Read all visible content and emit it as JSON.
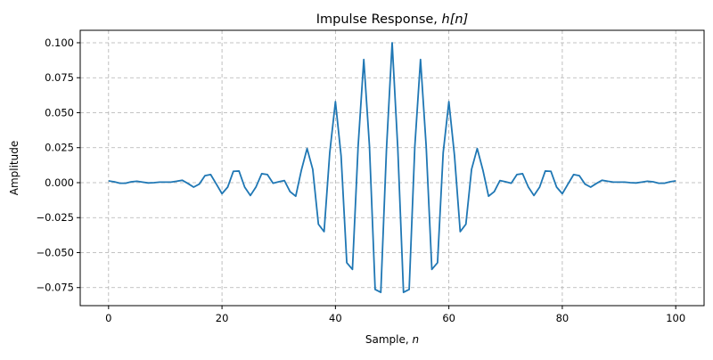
{
  "chart_data": {
    "type": "line",
    "title": "Impulse Response, h[n]",
    "title_prefix": "Impulse Response, ",
    "title_math": "h[n]",
    "xlabel": "Sample, n",
    "xlabel_prefix": "Sample, ",
    "xlabel_math": "n",
    "ylabel": "Amplitude",
    "xlim": [
      -5,
      105
    ],
    "ylim": [
      -0.0879,
      0.1089
    ],
    "xticks": [
      0,
      20,
      40,
      60,
      80,
      100
    ],
    "xtick_labels": [
      "0",
      "20",
      "40",
      "60",
      "80",
      "100"
    ],
    "yticks": [
      -0.075,
      -0.05,
      -0.025,
      0.0,
      0.025,
      0.05,
      0.075,
      0.1
    ],
    "ytick_labels": [
      "−0.075",
      "−0.050",
      "−0.025",
      "0.000",
      "0.025",
      "0.050",
      "0.075",
      "0.100"
    ],
    "grid": true,
    "legend": null,
    "series": [
      {
        "name": "h[n]",
        "color": "#1f77b4",
        "x": [
          0,
          1,
          2,
          3,
          4,
          5,
          6,
          7,
          8,
          9,
          10,
          11,
          12,
          13,
          14,
          15,
          16,
          17,
          18,
          19,
          20,
          21,
          22,
          23,
          24,
          25,
          26,
          27,
          28,
          29,
          30,
          31,
          32,
          33,
          34,
          35,
          36,
          37,
          38,
          39,
          40,
          41,
          42,
          43,
          44,
          45,
          46,
          47,
          48,
          49,
          50,
          51,
          52,
          53,
          54,
          55,
          56,
          57,
          58,
          59,
          60,
          61,
          62,
          63,
          64,
          65,
          66,
          67,
          68,
          69,
          70,
          71,
          72,
          73,
          74,
          75,
          76,
          77,
          78,
          79,
          80,
          81,
          82,
          83,
          84,
          85,
          86,
          87,
          88,
          89,
          90,
          91,
          92,
          93,
          94,
          95,
          96,
          97,
          98,
          99,
          100
        ],
        "values": [
          0.0013,
          0.0006,
          -0.0004,
          -0.0004,
          0.0006,
          0.001,
          0.0004,
          -0.0002,
          0.0,
          0.0004,
          0.0004,
          0.0004,
          0.001,
          0.0017,
          -0.0006,
          -0.0032,
          -0.001,
          0.005,
          0.0058,
          -0.001,
          -0.0079,
          -0.0032,
          0.0081,
          0.0083,
          -0.0032,
          -0.0092,
          -0.003,
          0.0064,
          0.0058,
          -0.0004,
          0.0006,
          0.0015,
          -0.0064,
          -0.0097,
          0.009,
          0.0244,
          0.0095,
          -0.0297,
          -0.035,
          0.0215,
          0.0579,
          0.019,
          -0.0572,
          -0.062,
          0.026,
          0.088,
          0.026,
          -0.0763,
          -0.0784,
          0.024,
          0.1,
          0.024,
          -0.0784,
          -0.0763,
          0.026,
          0.088,
          0.026,
          -0.062,
          -0.0572,
          0.0215,
          0.0579,
          0.019,
          -0.035,
          -0.0297,
          0.0095,
          0.0244,
          0.009,
          -0.0097,
          -0.0064,
          0.0015,
          0.0006,
          -0.0004,
          0.0058,
          0.0064,
          -0.003,
          -0.0092,
          -0.0032,
          0.0083,
          0.0081,
          -0.0032,
          -0.0079,
          -0.001,
          0.0058,
          0.005,
          -0.001,
          -0.0032,
          -0.0006,
          0.0017,
          0.001,
          0.0004,
          0.0004,
          0.0004,
          0.0,
          -0.0002,
          0.0004,
          0.001,
          0.0006,
          -0.0004,
          -0.0004,
          0.0006,
          0.0013
        ]
      }
    ]
  }
}
